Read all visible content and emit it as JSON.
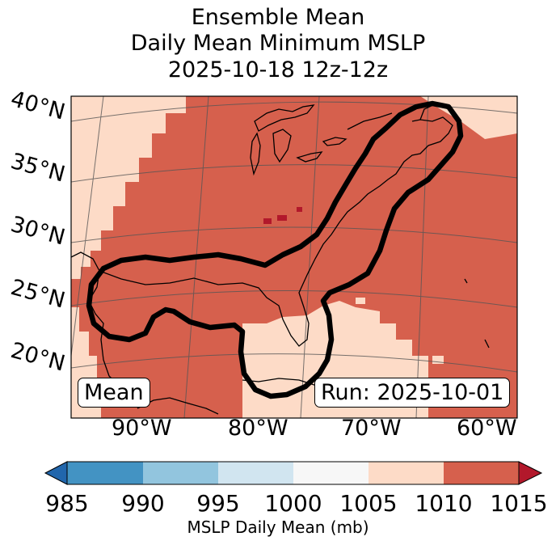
{
  "title": {
    "line1": "Ensemble Mean",
    "line2": "Daily Mean Minimum MSLP",
    "line3": "2025-10-18 12z-12z"
  },
  "map": {
    "lat_labels": [
      "40°N",
      "35°N",
      "30°N",
      "25°N",
      "20°N"
    ],
    "lon_labels": [
      "90°W",
      "80°W",
      "70°W",
      "60°W"
    ],
    "mean_label": "Mean",
    "run_label": "Run: 2025-10-01",
    "colors": {
      "band_1005_1010": "#fddbc7",
      "band_1010_1015": "#d6604d",
      "above_1015": "#b2182b",
      "contour": "#000000",
      "gridline": "#555555"
    }
  },
  "colorbar": {
    "label": "MSLP Daily Mean (mb)",
    "ticks": [
      "985",
      "990",
      "995",
      "1000",
      "1005",
      "1010",
      "1015"
    ],
    "colors": {
      "under": "#2166ac",
      "b985_990": "#4393c3",
      "b990_995": "#92c5de",
      "b995_1000": "#d1e5f0",
      "b1000_1005": "#f7f7f7",
      "b1005_1010": "#fddbc7",
      "b1010_1015": "#d6604d",
      "over": "#b2182b"
    }
  }
}
